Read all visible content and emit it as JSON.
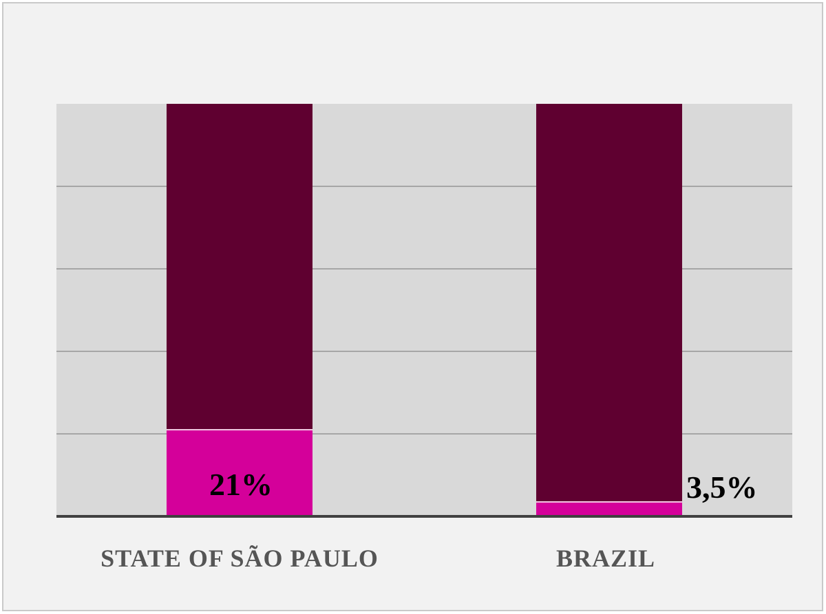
{
  "chart_data": {
    "type": "bar",
    "stacked": true,
    "categories": [
      "STATE OF SÃO PAULO",
      "BRAZIL"
    ],
    "series": [
      {
        "values": [
          21,
          3.5
        ],
        "color": "#d4009a"
      },
      {
        "values": [
          79,
          96.5
        ],
        "color": "#5f0030"
      }
    ],
    "data_labels": [
      "21%",
      "3,5%"
    ],
    "ylim": [
      0,
      100
    ],
    "grid": true,
    "gridline_values": [
      20,
      40,
      60,
      80
    ],
    "title": "",
    "xlabel": "",
    "ylabel": "",
    "colors": {
      "plot_background": "#d9d9d9",
      "frame_background": "#f2f2f2",
      "gridline": "#a6a6a6",
      "axis": "#404040"
    }
  }
}
